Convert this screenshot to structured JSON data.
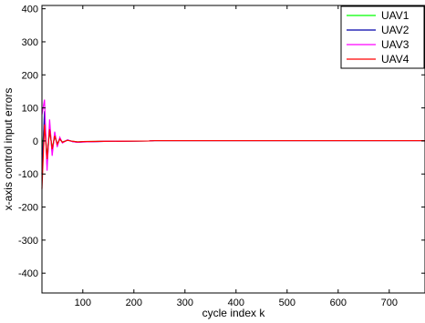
{
  "chart_data": {
    "type": "line",
    "title": "",
    "xlabel": "cycle index k",
    "ylabel": "x-axis control input errors",
    "xlim": [
      20,
      770
    ],
    "ylim": [
      -460,
      410
    ],
    "xticks": [
      100,
      200,
      300,
      400,
      500,
      600,
      700
    ],
    "yticks": [
      -400,
      -300,
      -200,
      -100,
      0,
      100,
      200,
      300,
      400
    ],
    "grid": false,
    "legend_position": "top-right",
    "series": [
      {
        "name": "UAV1",
        "color": "#00ff00",
        "x": [
          20,
          25,
          30,
          35,
          40,
          45,
          50,
          55,
          60,
          70,
          80,
          90,
          100,
          150,
          230,
          240,
          300,
          400,
          500,
          600,
          700,
          770
        ],
        "y": [
          -40,
          60,
          -45,
          30,
          -20,
          12,
          -8,
          5,
          -3,
          2,
          -1,
          -3,
          -2,
          -1,
          0,
          1,
          1,
          1,
          1,
          1,
          1,
          1
        ]
      },
      {
        "name": "UAV2",
        "color": "#0000aa",
        "x": [
          20,
          25,
          30,
          35,
          40,
          45,
          50,
          55,
          60,
          70,
          80,
          90,
          100,
          150,
          230,
          240,
          300,
          400,
          500,
          600,
          700,
          770
        ],
        "y": [
          -100,
          90,
          -75,
          50,
          -35,
          22,
          -14,
          9,
          -5,
          3,
          -2,
          -4,
          -3,
          -1,
          0,
          1,
          1,
          1,
          1,
          1,
          1,
          1
        ]
      },
      {
        "name": "UAV3",
        "color": "#ff00ff",
        "x": [
          20,
          25,
          30,
          35,
          40,
          45,
          50,
          55,
          60,
          70,
          80,
          90,
          100,
          150,
          230,
          240,
          300,
          400,
          500,
          600,
          700,
          770
        ],
        "y": [
          80,
          125,
          -90,
          65,
          -45,
          28,
          -18,
          11,
          -6,
          3,
          -2,
          -4,
          -3,
          -1,
          0,
          1,
          1,
          1,
          1,
          1,
          1,
          1
        ]
      },
      {
        "name": "UAV4",
        "color": "#ff0000",
        "x": [
          20,
          25,
          30,
          35,
          40,
          45,
          50,
          55,
          60,
          70,
          80,
          90,
          100,
          150,
          230,
          240,
          300,
          400,
          500,
          600,
          700,
          770
        ],
        "y": [
          -145,
          50,
          -55,
          35,
          -25,
          16,
          -10,
          6,
          -4,
          2,
          -1,
          -3,
          -2,
          -1,
          0,
          1,
          1,
          1,
          1,
          1,
          1,
          1
        ]
      }
    ]
  }
}
